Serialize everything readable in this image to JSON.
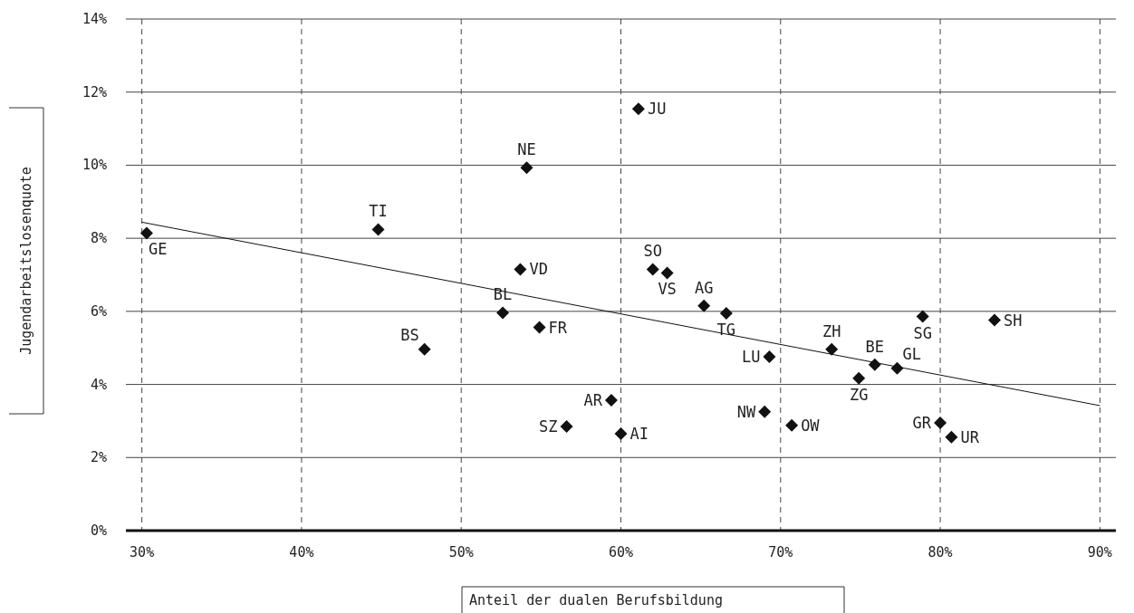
{
  "chart_data": {
    "type": "scatter",
    "xlabel": "Anteil der dualen Berufsbildung",
    "ylabel": "Jugendarbeitslosenquote",
    "marker": "diamond",
    "grid": true,
    "xlim": [
      29,
      91
    ],
    "ylim": [
      0,
      14
    ],
    "xticks": [
      {
        "value": 30,
        "label": "30%"
      },
      {
        "value": 40,
        "label": "40%"
      },
      {
        "value": 50,
        "label": "50%"
      },
      {
        "value": 60,
        "label": "60%"
      },
      {
        "value": 70,
        "label": "70%"
      },
      {
        "value": 80,
        "label": "80%"
      },
      {
        "value": 90,
        "label": "90%"
      }
    ],
    "yticks": [
      {
        "value": 0,
        "label": "0%"
      },
      {
        "value": 2,
        "label": "2%"
      },
      {
        "value": 4,
        "label": "4%"
      },
      {
        "value": 6,
        "label": "6%"
      },
      {
        "value": 8,
        "label": "8%"
      },
      {
        "value": 10,
        "label": "10%"
      },
      {
        "value": 12,
        "label": "12%"
      },
      {
        "value": 14,
        "label": "14%"
      }
    ],
    "series": [
      {
        "name": "GE",
        "color": "#111111",
        "x": [
          30.3
        ],
        "values": [
          8.14
        ]
      },
      {
        "name": "TI",
        "color": "#111111",
        "x": [
          44.8
        ],
        "values": [
          8.24
        ]
      },
      {
        "name": "NE",
        "color": "#111111",
        "x": [
          54.1
        ],
        "values": [
          9.93
        ]
      },
      {
        "name": "JU",
        "color": "#111111",
        "x": [
          61.1
        ],
        "values": [
          11.54
        ]
      },
      {
        "name": "VD",
        "color": "#111111",
        "x": [
          53.7
        ],
        "values": [
          7.15
        ]
      },
      {
        "name": "BL",
        "color": "#111111",
        "x": [
          52.6
        ],
        "values": [
          5.96
        ]
      },
      {
        "name": "FR",
        "color": "#111111",
        "x": [
          54.9
        ],
        "values": [
          5.56
        ]
      },
      {
        "name": "BS",
        "color": "#111111",
        "x": [
          47.7
        ],
        "values": [
          4.96
        ]
      },
      {
        "name": "SO",
        "color": "#111111",
        "x": [
          62.0
        ],
        "values": [
          7.15
        ]
      },
      {
        "name": "VS",
        "color": "#111111",
        "x": [
          62.9
        ],
        "values": [
          7.05
        ]
      },
      {
        "name": "AG",
        "color": "#111111",
        "x": [
          65.2
        ],
        "values": [
          6.15
        ]
      },
      {
        "name": "TG",
        "color": "#111111",
        "x": [
          66.6
        ],
        "values": [
          5.95
        ]
      },
      {
        "name": "LU",
        "color": "#111111",
        "x": [
          69.3
        ],
        "values": [
          4.76
        ]
      },
      {
        "name": "ZH",
        "color": "#111111",
        "x": [
          73.2
        ],
        "values": [
          4.96
        ]
      },
      {
        "name": "ZG",
        "color": "#111111",
        "x": [
          74.9
        ],
        "values": [
          4.17
        ]
      },
      {
        "name": "AR",
        "color": "#111111",
        "x": [
          59.4
        ],
        "values": [
          3.57
        ]
      },
      {
        "name": "SZ",
        "color": "#111111",
        "x": [
          56.6
        ],
        "values": [
          2.85
        ]
      },
      {
        "name": "AI",
        "color": "#111111",
        "x": [
          60.0
        ],
        "values": [
          2.65
        ]
      },
      {
        "name": "NW",
        "color": "#111111",
        "x": [
          69.0
        ],
        "values": [
          3.25
        ]
      },
      {
        "name": "OW",
        "color": "#111111",
        "x": [
          70.7
        ],
        "values": [
          2.88
        ]
      },
      {
        "name": "BE",
        "color": "#111111",
        "x": [
          75.9
        ],
        "values": [
          4.54
        ]
      },
      {
        "name": "GL",
        "color": "#111111",
        "x": [
          77.3
        ],
        "values": [
          4.44
        ]
      },
      {
        "name": "SG",
        "color": "#111111",
        "x": [
          78.9
        ],
        "values": [
          5.86
        ]
      },
      {
        "name": "SH",
        "color": "#111111",
        "x": [
          83.4
        ],
        "values": [
          5.76
        ]
      },
      {
        "name": "GR",
        "color": "#111111",
        "x": [
          80.0
        ],
        "values": [
          2.95
        ]
      },
      {
        "name": "UR",
        "color": "#111111",
        "x": [
          80.7
        ],
        "values": [
          2.56
        ]
      },
      {
        "type": "line",
        "marker": "none",
        "color": "#111111",
        "x": [
          30,
          90
        ],
        "values": [
          8.44,
          3.42
        ]
      }
    ]
  }
}
